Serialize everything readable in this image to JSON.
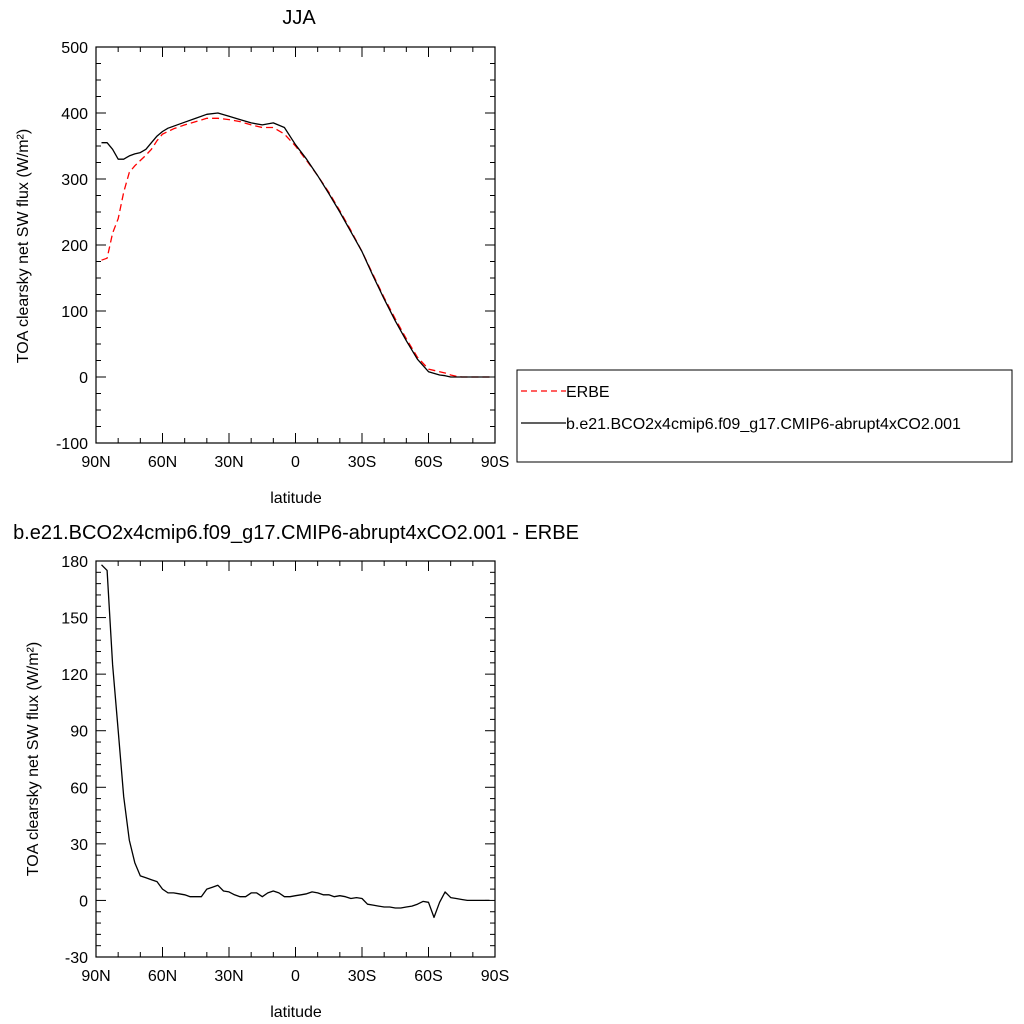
{
  "chart_data": [
    {
      "type": "line",
      "title": "JJA",
      "xlabel": "latitude",
      "ylabel": "TOA clearsky net SW flux (W/m²)",
      "x_tick_labels": [
        "90N",
        "60N",
        "30N",
        "0",
        "30S",
        "60S",
        "90S"
      ],
      "y_ticks": [
        -100,
        0,
        100,
        200,
        300,
        400,
        500
      ],
      "xlim": [
        90,
        -90
      ],
      "ylim": [
        -100,
        500
      ],
      "legend": {
        "placement": "right",
        "entries": [
          "ERBE",
          "b.e21.BCO2x4cmip6.f09_g17.CMIP6-abrupt4xCO2.001"
        ]
      },
      "series": [
        {
          "name": "ERBE",
          "color": "#ff0000",
          "dash": true,
          "x": [
            87.5,
            85,
            82.5,
            80,
            77.5,
            75,
            72.5,
            70,
            67.5,
            65,
            62.5,
            60,
            57.5,
            55,
            50,
            45,
            40,
            35,
            30,
            25,
            20,
            15,
            10,
            5,
            0,
            -5,
            -10,
            -15,
            -20,
            -25,
            -30,
            -35,
            -40,
            -45,
            -50,
            -55,
            -60,
            -65,
            -67.5,
            -70,
            -72.5,
            -75,
            -80,
            -85,
            -87.5
          ],
          "y": [
            177,
            180,
            218,
            240,
            280,
            310,
            320,
            328,
            336,
            345,
            358,
            368,
            372,
            376,
            382,
            387,
            392,
            392,
            390,
            387,
            382,
            378,
            378,
            368,
            350,
            328,
            305,
            280,
            252,
            222,
            190,
            155,
            120,
            88,
            58,
            30,
            12,
            8,
            6,
            3,
            1,
            0,
            0,
            0,
            0
          ]
        },
        {
          "name": "b.e21.BCO2x4cmip6.f09_g17.CMIP6-abrupt4xCO2.001",
          "color": "#000000",
          "dash": false,
          "x": [
            87.5,
            85,
            82.5,
            80,
            77.5,
            75,
            72.5,
            70,
            67.5,
            65,
            62.5,
            60,
            57.5,
            55,
            50,
            45,
            40,
            35,
            30,
            25,
            20,
            15,
            10,
            5,
            0,
            -5,
            -10,
            -15,
            -20,
            -25,
            -30,
            -35,
            -40,
            -45,
            -50,
            -55,
            -60,
            -65,
            -67.5,
            -70,
            -72.5,
            -75,
            -80,
            -85,
            -87.5
          ],
          "y": [
            355,
            355,
            345,
            330,
            330,
            335,
            338,
            340,
            345,
            355,
            365,
            372,
            377,
            380,
            386,
            392,
            398,
            400,
            395,
            390,
            385,
            382,
            385,
            378,
            352,
            330,
            305,
            278,
            250,
            220,
            190,
            153,
            118,
            85,
            55,
            27,
            8,
            3,
            2,
            0,
            0,
            0,
            0,
            0,
            0
          ]
        }
      ]
    },
    {
      "type": "line",
      "title": "b.e21.BCO2x4cmip6.f09_g17.CMIP6-abrupt4xCO2.001 - ERBE",
      "xlabel": "latitude",
      "ylabel": "TOA clearsky net SW flux (W/m²)",
      "x_tick_labels": [
        "90N",
        "60N",
        "30N",
        "0",
        "30S",
        "60S",
        "90S"
      ],
      "y_ticks": [
        -30,
        0,
        30,
        60,
        90,
        120,
        150,
        180
      ],
      "xlim": [
        90,
        -90
      ],
      "ylim": [
        -30,
        180
      ],
      "series": [
        {
          "color": "#000000",
          "dash": false,
          "x": [
            87.5,
            85,
            82.5,
            80,
            77.5,
            75,
            72.5,
            70,
            67.5,
            65,
            62.5,
            60,
            57.5,
            55,
            52.5,
            50,
            47.5,
            45,
            42.5,
            40,
            37.5,
            35,
            32.5,
            30,
            27.5,
            25,
            22.5,
            20,
            17.5,
            15,
            12.5,
            10,
            7.5,
            5,
            2.5,
            0,
            -2.5,
            -5,
            -7.5,
            -10,
            -12.5,
            -15,
            -17.5,
            -20,
            -22.5,
            -25,
            -27.5,
            -30,
            -32.5,
            -35,
            -37.5,
            -40,
            -42.5,
            -45,
            -47.5,
            -50,
            -52.5,
            -55,
            -57.5,
            -60,
            -62.5,
            -65,
            -67.5,
            -70,
            -72.5,
            -75,
            -77.5,
            -80,
            -82.5,
            -85,
            -87.5
          ],
          "y": [
            178,
            175,
            125,
            90,
            55,
            32,
            20,
            13,
            12,
            11,
            10,
            6,
            4,
            4,
            3.5,
            3,
            2,
            2,
            2,
            6,
            7,
            8,
            5,
            4.5,
            3,
            2,
            2,
            4,
            4,
            2,
            4,
            5,
            4,
            2,
            2,
            2.5,
            3,
            3.5,
            4.5,
            4,
            3,
            3,
            2,
            2.5,
            2,
            1,
            1.5,
            1,
            -2,
            -2.5,
            -3,
            -3.5,
            -3.5,
            -4,
            -4,
            -3.5,
            -3,
            -2,
            -0.5,
            -1,
            -9,
            -1,
            4.5,
            1.5,
            1,
            0.5,
            0,
            0,
            0,
            0,
            0
          ]
        }
      ]
    }
  ]
}
